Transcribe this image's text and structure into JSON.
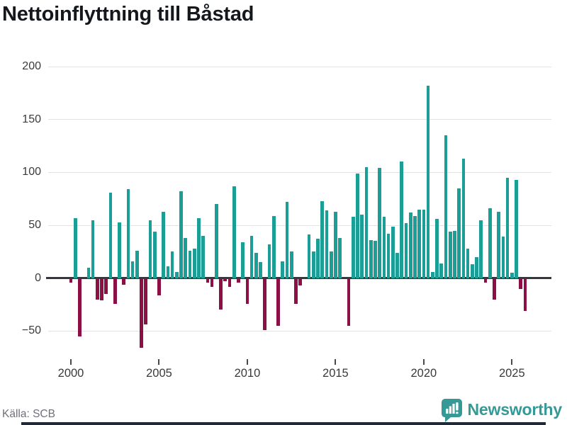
{
  "title": "Nettoinflyttning till Båstad",
  "source": "Källa: SCB",
  "logo": {
    "text": "Newsworthy",
    "icon": "bar-chart-speech-bubble-icon"
  },
  "colors": {
    "positive": "#1b9e96",
    "negative": "#8c1046",
    "gridline": "#e2e2e2",
    "zero_line": "#34383e",
    "axis_text": "#3a3a3a",
    "title_text": "#14181c",
    "source_text": "#70707a",
    "logo_teal": "#359996",
    "footer_bar": "#1f2a39"
  },
  "chart_data": {
    "type": "bar",
    "title": "Nettoinflyttning till Båstad",
    "frequency": "quarterly",
    "start_period": "2000 Q1",
    "end_period": "2025 Q4",
    "values": [
      -4,
      57,
      -55,
      0,
      10,
      55,
      -20,
      -21,
      -15,
      81,
      -24,
      53,
      -6,
      84,
      16,
      26,
      -66,
      -44,
      55,
      44,
      -16,
      63,
      11,
      25,
      6,
      82,
      38,
      26,
      28,
      57,
      40,
      -4,
      -8,
      70,
      -30,
      -3,
      -8,
      87,
      -4,
      34,
      -24,
      40,
      24,
      15,
      -49,
      32,
      59,
      -45,
      16,
      72,
      25,
      -24,
      -7,
      0,
      41,
      25,
      37,
      73,
      64,
      25,
      63,
      38,
      0,
      -45,
      58,
      99,
      60,
      105,
      36,
      35,
      104,
      58,
      42,
      49,
      24,
      110,
      52,
      62,
      59,
      65,
      65,
      182,
      6,
      56,
      14,
      135,
      44,
      45,
      85,
      113,
      28,
      13,
      20,
      55,
      -4,
      66,
      -20,
      63,
      39,
      95,
      5,
      93,
      -10,
      -31
    ],
    "yticks": [
      200,
      150,
      100,
      50,
      0,
      -50
    ],
    "ytick_labels": [
      "200",
      "150",
      "100",
      "50",
      "0",
      "−50"
    ],
    "xticks": [
      2000,
      2005,
      2010,
      2015,
      2020,
      2025
    ],
    "ylim": [
      -75,
      210
    ],
    "grid": true,
    "legend": false,
    "bar_color_positive": "#1b9e96",
    "bar_color_negative": "#8c1046"
  }
}
